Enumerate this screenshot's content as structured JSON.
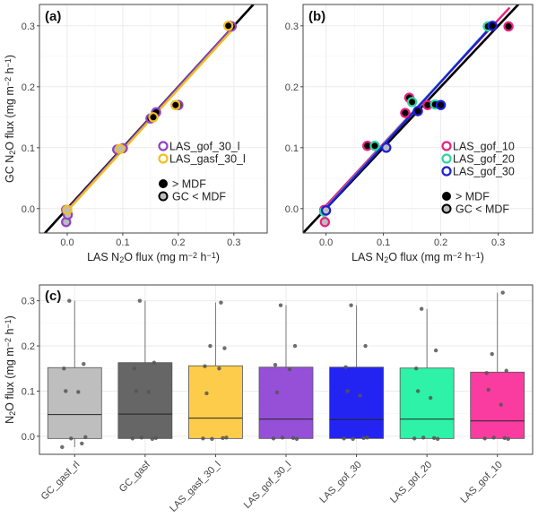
{
  "colors": {
    "gof_30_l": "#8c44c4",
    "gasf_30_l": "#f0c020",
    "gof_10": "#e8217f",
    "gof_20": "#2ed6a0",
    "gof_30": "#1f1fd6",
    "one_to_one": "#000000",
    "above_mdf": "#000000",
    "below_mdf": "#bdbdbd"
  },
  "chart_data": [
    {
      "panel": "(a)",
      "type": "scatter",
      "xlabel": "LAS N₂O flux (mg m⁻² h⁻¹)",
      "ylabel": "GC N₂O flux (mg m⁻² h⁻¹)",
      "xlim": [
        -0.05,
        0.36
      ],
      "ylim": [
        -0.04,
        0.335
      ],
      "xticks": [
        "0.0",
        "0.1",
        "0.2",
        "0.3"
      ],
      "yticks": [
        "0.0",
        "0.1",
        "0.2",
        "0.3"
      ],
      "xtick_values": [
        0,
        0.1,
        0.2,
        0.3
      ],
      "ytick_values": [
        0,
        0.1,
        0.2,
        0.3
      ],
      "reference_line": "1:1",
      "fits": [
        {
          "series": "LAS_gof_30_l",
          "x": [
            -0.002,
            0.3
          ],
          "y": [
            -0.004,
            0.3
          ]
        },
        {
          "series": "LAS_gasf_30_l",
          "x": [
            -0.002,
            0.3
          ],
          "y": [
            -0.006,
            0.296
          ]
        }
      ],
      "series": [
        {
          "name": "LAS_gof_30_l",
          "color_key": "gof_30_l",
          "points": [
            {
              "x": -0.002,
              "y": -0.002,
              "mdf": "below"
            },
            {
              "x": -0.002,
              "y": -0.022,
              "mdf": "below"
            },
            {
              "x": 0.001,
              "y": -0.01,
              "mdf": "below"
            },
            {
              "x": 0.09,
              "y": 0.097,
              "mdf": "below"
            },
            {
              "x": 0.1,
              "y": 0.099,
              "mdf": "below"
            },
            {
              "x": 0.15,
              "y": 0.148,
              "mdf": "above"
            },
            {
              "x": 0.16,
              "y": 0.158,
              "mdf": "above"
            },
            {
              "x": 0.2,
              "y": 0.17,
              "mdf": "above"
            },
            {
              "x": 0.292,
              "y": 0.3,
              "mdf": "above"
            },
            {
              "x": 0.296,
              "y": 0.299,
              "mdf": "above"
            }
          ]
        },
        {
          "name": "LAS_gasf_30_l",
          "color_key": "gasf_30_l",
          "points": [
            {
              "x": 0.0,
              "y": -0.002,
              "mdf": "below"
            },
            {
              "x": 0.095,
              "y": 0.098,
              "mdf": "below"
            },
            {
              "x": 0.155,
              "y": 0.15,
              "mdf": "above"
            },
            {
              "x": 0.195,
              "y": 0.17,
              "mdf": "above"
            },
            {
              "x": 0.29,
              "y": 0.3,
              "mdf": "above"
            }
          ]
        }
      ],
      "legend": {
        "entries": [
          "LAS_gof_30_l",
          "LAS_gasf_30_l"
        ],
        "mdf_entries": [
          "> MDF",
          "GC < MDF"
        ]
      }
    },
    {
      "panel": "(b)",
      "type": "scatter",
      "xlabel": "LAS N₂O flux (mg m⁻² h⁻¹)",
      "ylabel": "",
      "xlim": [
        -0.04,
        0.36
      ],
      "ylim": [
        -0.04,
        0.335
      ],
      "xticks": [
        "0.0",
        "0.1",
        "0.2",
        "0.3"
      ],
      "yticks": [
        "0.0",
        "0.1",
        "0.2",
        "0.3"
      ],
      "xtick_values": [
        0,
        0.1,
        0.2,
        0.3
      ],
      "ytick_values": [
        0,
        0.1,
        0.2,
        0.3
      ],
      "reference_line": "1:1",
      "fits": [
        {
          "series": "LAS_gof_10",
          "x": [
            -0.005,
            0.32
          ],
          "y": [
            0.0,
            0.33
          ]
        },
        {
          "series": "LAS_gof_20",
          "x": [
            -0.005,
            0.29
          ],
          "y": [
            -0.004,
            0.302
          ]
        },
        {
          "series": "LAS_gof_30",
          "x": [
            -0.005,
            0.285
          ],
          "y": [
            -0.005,
            0.296
          ]
        }
      ],
      "series": [
        {
          "name": "LAS_gof_10",
          "color_key": "gof_10",
          "points": [
            {
              "x": -0.003,
              "y": -0.002,
              "mdf": "below"
            },
            {
              "x": -0.002,
              "y": -0.022,
              "mdf": "below"
            },
            {
              "x": 0.072,
              "y": 0.103,
              "mdf": "above"
            },
            {
              "x": 0.138,
              "y": 0.157,
              "mdf": "above"
            },
            {
              "x": 0.145,
              "y": 0.182,
              "mdf": "above"
            },
            {
              "x": 0.177,
              "y": 0.17,
              "mdf": "above"
            },
            {
              "x": 0.318,
              "y": 0.299,
              "mdf": "above"
            }
          ]
        },
        {
          "name": "LAS_gof_20",
          "color_key": "gof_20",
          "points": [
            {
              "x": -0.003,
              "y": -0.005,
              "mdf": "below"
            },
            {
              "x": 0.085,
              "y": 0.103,
              "mdf": "above"
            },
            {
              "x": 0.15,
              "y": 0.175,
              "mdf": "above"
            },
            {
              "x": 0.19,
              "y": 0.171,
              "mdf": "above"
            },
            {
              "x": 0.282,
              "y": 0.299,
              "mdf": "above"
            }
          ]
        },
        {
          "name": "LAS_gof_30",
          "color_key": "gof_30",
          "points": [
            {
              "x": 0.0,
              "y": -0.003,
              "mdf": "below"
            },
            {
              "x": 0.105,
              "y": 0.1,
              "mdf": "below"
            },
            {
              "x": 0.16,
              "y": 0.16,
              "mdf": "above"
            },
            {
              "x": 0.2,
              "y": 0.17,
              "mdf": "above"
            },
            {
              "x": 0.29,
              "y": 0.3,
              "mdf": "above"
            }
          ]
        }
      ],
      "legend": {
        "entries": [
          "LAS_gof_10",
          "LAS_gof_20",
          "LAS_gof_30"
        ],
        "mdf_entries": [
          "> MDF",
          "GC < MDF"
        ]
      }
    },
    {
      "panel": "(c)",
      "type": "boxplot",
      "ylabel": "N₂O flux (mg m⁻² h⁻¹)",
      "ylim": [
        -0.04,
        0.335
      ],
      "yticks": [
        "0.0",
        "0.1",
        "0.2",
        "0.3"
      ],
      "ytick_values": [
        0,
        0.1,
        0.2,
        0.3
      ],
      "categories": [
        "GC_gasf_rl",
        "GC_gasf",
        "LAS_gasf_30_l",
        "LAS_gof_30_l",
        "LAS_gof_30",
        "LAS_gof_20",
        "LAS_gof_10"
      ],
      "colors": [
        "#bebebe",
        "#666666",
        "#fdcc4a",
        "#9650d8",
        "#2424f2",
        "#2ef2a8",
        "#fa3ca0"
      ],
      "boxes": [
        {
          "min": -0.024,
          "q1": -0.005,
          "median": 0.048,
          "q3": 0.152,
          "max": 0.3
        },
        {
          "min": -0.005,
          "q1": -0.005,
          "median": 0.049,
          "q3": 0.163,
          "max": 0.3
        },
        {
          "min": -0.005,
          "q1": -0.005,
          "median": 0.04,
          "q3": 0.156,
          "max": 0.296
        },
        {
          "min": -0.005,
          "q1": -0.005,
          "median": 0.038,
          "q3": 0.153,
          "max": 0.29
        },
        {
          "min": -0.005,
          "q1": -0.005,
          "median": 0.037,
          "q3": 0.153,
          "max": 0.29
        },
        {
          "min": -0.005,
          "q1": -0.005,
          "median": 0.038,
          "q3": 0.151,
          "max": 0.282
        },
        {
          "min": -0.005,
          "q1": -0.005,
          "median": 0.034,
          "q3": 0.142,
          "max": 0.318
        }
      ],
      "points": [
        [
          -0.024,
          -0.016,
          -0.005,
          -0.002,
          0.1,
          0.098,
          0.15,
          0.16,
          0.3
        ],
        [
          -0.005,
          -0.006,
          -0.003,
          -0.004,
          0.1,
          0.098,
          0.15,
          0.163,
          0.3
        ],
        [
          -0.005,
          -0.004,
          -0.006,
          -0.003,
          0.095,
          0.15,
          0.155,
          0.195,
          0.2,
          0.296
        ],
        [
          -0.005,
          -0.004,
          -0.003,
          -0.006,
          0.097,
          0.148,
          0.158,
          0.2,
          0.29
        ],
        [
          -0.005,
          -0.004,
          -0.006,
          -0.003,
          0.1,
          0.09,
          0.153,
          0.2,
          0.29
        ],
        [
          -0.005,
          -0.004,
          -0.003,
          -0.006,
          0.1,
          0.085,
          0.15,
          0.19,
          0.282
        ],
        [
          -0.005,
          -0.004,
          -0.003,
          -0.006,
          0.103,
          0.07,
          0.14,
          0.145,
          0.182,
          0.318
        ]
      ]
    }
  ]
}
